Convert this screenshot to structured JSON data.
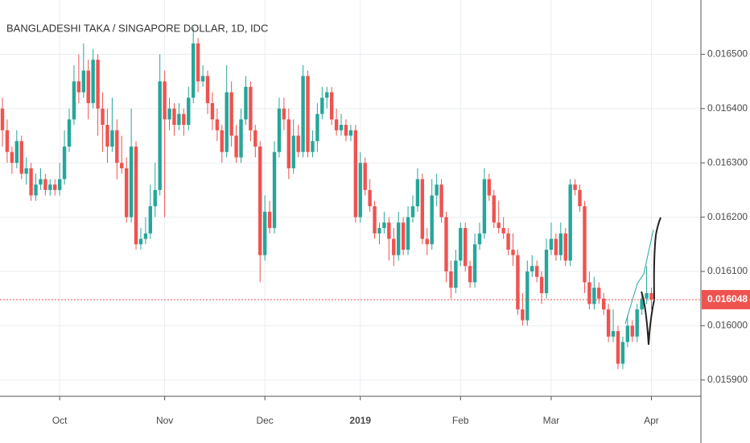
{
  "chart_data": {
    "type": "candlestick",
    "title": "BANGLADESHI TAKA / SINGAPORE DOLLAR, 1D, IDC",
    "up_color": "#26a69a",
    "down_color": "#ef5350",
    "ylim": [
      0.01587,
      0.0166
    ],
    "yticks": [
      {
        "value": 0.0159,
        "label": "0.015900"
      },
      {
        "value": 0.016,
        "label": "0.016000"
      },
      {
        "value": 0.0161,
        "label": "0.016100"
      },
      {
        "value": 0.0162,
        "label": "0.016200"
      },
      {
        "value": 0.0163,
        "label": "0.016300"
      },
      {
        "value": 0.0164,
        "label": "0.016400"
      },
      {
        "value": 0.0165,
        "label": "0.016500"
      }
    ],
    "grid": true,
    "last_price": {
      "value": 0.016048,
      "label": "0.016048"
    },
    "categories": [
      null,
      null,
      null,
      null,
      null,
      null,
      null,
      null,
      null,
      null,
      null,
      null,
      "Oct",
      null,
      null,
      null,
      null,
      null,
      null,
      null,
      null,
      null,
      null,
      null,
      null,
      null,
      null,
      null,
      null,
      null,
      null,
      null,
      null,
      null,
      "Nov",
      null,
      null,
      null,
      null,
      null,
      null,
      null,
      null,
      null,
      null,
      null,
      null,
      null,
      null,
      null,
      null,
      null,
      null,
      null,
      null,
      "Dec",
      null,
      null,
      null,
      null,
      null,
      null,
      null,
      null,
      null,
      null,
      null,
      null,
      null,
      null,
      null,
      null,
      null,
      null,
      null,
      "2019",
      null,
      null,
      null,
      null,
      null,
      null,
      null,
      null,
      null,
      null,
      null,
      null,
      null,
      null,
      null,
      null,
      null,
      null,
      null,
      null,
      "Feb",
      null,
      null,
      null,
      null,
      null,
      null,
      null,
      null,
      null,
      null,
      null,
      null,
      null,
      null,
      null,
      null,
      null,
      null,
      "Mar",
      null,
      null,
      null,
      null,
      null,
      null,
      null,
      null,
      null,
      null,
      null,
      null,
      null,
      null,
      null,
      null,
      null,
      null,
      null,
      null,
      "Apr"
    ],
    "values": [
      [
        0.0164,
        0.01642,
        0.01633,
        0.01636
      ],
      [
        0.01636,
        0.01638,
        0.0163,
        0.01632
      ],
      [
        0.01632,
        0.01633,
        0.01628,
        0.0163
      ],
      [
        0.0163,
        0.01636,
        0.01629,
        0.01634
      ],
      [
        0.01634,
        0.01635,
        0.01627,
        0.01628
      ],
      [
        0.01628,
        0.01631,
        0.01626,
        0.01629
      ],
      [
        0.01629,
        0.0163,
        0.01623,
        0.01624
      ],
      [
        0.01624,
        0.01628,
        0.01623,
        0.01626
      ],
      [
        0.01626,
        0.01629,
        0.01625,
        0.01627
      ],
      [
        0.01627,
        0.01628,
        0.01624,
        0.01625
      ],
      [
        0.01625,
        0.01627,
        0.01624,
        0.01626
      ],
      [
        0.01626,
        0.01627,
        0.01624,
        0.01625
      ],
      [
        0.01625,
        0.0163,
        0.01624,
        0.01627
      ],
      [
        0.01627,
        0.01636,
        0.01626,
        0.01633
      ],
      [
        0.01633,
        0.0164,
        0.01632,
        0.01638
      ],
      [
        0.01638,
        0.01648,
        0.01637,
        0.01645
      ],
      [
        0.01645,
        0.0165,
        0.01641,
        0.01643
      ],
      [
        0.01643,
        0.01652,
        0.01642,
        0.01647
      ],
      [
        0.01647,
        0.01649,
        0.01638,
        0.01641
      ],
      [
        0.01641,
        0.01651,
        0.0164,
        0.01649
      ],
      [
        0.01649,
        0.0165,
        0.01635,
        0.0164
      ],
      [
        0.0164,
        0.01643,
        0.01632,
        0.01637
      ],
      [
        0.01637,
        0.0164,
        0.0163,
        0.01633
      ],
      [
        0.01633,
        0.01642,
        0.01632,
        0.01636
      ],
      [
        0.01636,
        0.01638,
        0.01627,
        0.0163
      ],
      [
        0.0163,
        0.01635,
        0.01628,
        0.01629
      ],
      [
        0.01629,
        0.01631,
        0.01619,
        0.0162
      ],
      [
        0.0162,
        0.0164,
        0.01619,
        0.01633
      ],
      [
        0.01633,
        0.01634,
        0.01614,
        0.01615
      ],
      [
        0.01615,
        0.01618,
        0.01614,
        0.01616
      ],
      [
        0.01616,
        0.0162,
        0.01615,
        0.01617
      ],
      [
        0.01617,
        0.01626,
        0.01616,
        0.01622
      ],
      [
        0.01622,
        0.0163,
        0.0162,
        0.01625
      ],
      [
        0.01625,
        0.0165,
        0.01624,
        0.01645
      ],
      [
        0.01645,
        0.01647,
        0.0162,
        0.01638
      ],
      [
        0.01638,
        0.01642,
        0.01636,
        0.0164
      ],
      [
        0.0164,
        0.01641,
        0.01635,
        0.01637
      ],
      [
        0.01637,
        0.01641,
        0.01636,
        0.01639
      ],
      [
        0.01639,
        0.0164,
        0.01635,
        0.01637
      ],
      [
        0.01637,
        0.01644,
        0.01636,
        0.01642
      ],
      [
        0.01642,
        0.01655,
        0.01641,
        0.01652
      ],
      [
        0.01652,
        0.01653,
        0.01643,
        0.01645
      ],
      [
        0.01645,
        0.01648,
        0.01644,
        0.01646
      ],
      [
        0.01646,
        0.01647,
        0.01639,
        0.01641
      ],
      [
        0.01641,
        0.01643,
        0.01636,
        0.01638
      ],
      [
        0.01638,
        0.0164,
        0.01634,
        0.01636
      ],
      [
        0.01636,
        0.01637,
        0.0163,
        0.01632
      ],
      [
        0.01632,
        0.01648,
        0.01631,
        0.01643
      ],
      [
        0.01643,
        0.01645,
        0.01633,
        0.01635
      ],
      [
        0.01635,
        0.01637,
        0.0163,
        0.01631
      ],
      [
        0.01631,
        0.0164,
        0.0163,
        0.01638
      ],
      [
        0.01638,
        0.01646,
        0.01637,
        0.01644
      ],
      [
        0.01644,
        0.01645,
        0.01634,
        0.01636
      ],
      [
        0.01636,
        0.01637,
        0.01631,
        0.01633
      ],
      [
        0.01633,
        0.01634,
        0.01608,
        0.01613
      ],
      [
        0.01613,
        0.01624,
        0.01612,
        0.01621
      ],
      [
        0.01621,
        0.01623,
        0.01617,
        0.01618
      ],
      [
        0.01618,
        0.01634,
        0.01617,
        0.01632
      ],
      [
        0.01632,
        0.01642,
        0.01631,
        0.0164
      ],
      [
        0.0164,
        0.01642,
        0.01636,
        0.01638
      ],
      [
        0.01638,
        0.0164,
        0.01627,
        0.01629
      ],
      [
        0.01629,
        0.01638,
        0.01628,
        0.01635
      ],
      [
        0.01635,
        0.01637,
        0.01631,
        0.01632
      ],
      [
        0.01632,
        0.01648,
        0.01631,
        0.01646
      ],
      [
        0.01646,
        0.01647,
        0.01631,
        0.01632
      ],
      [
        0.01632,
        0.01636,
        0.01631,
        0.01634
      ],
      [
        0.01634,
        0.01641,
        0.01632,
        0.01639
      ],
      [
        0.01639,
        0.01644,
        0.01638,
        0.01642
      ],
      [
        0.01642,
        0.01644,
        0.0164,
        0.01643
      ],
      [
        0.01643,
        0.01644,
        0.01637,
        0.01638
      ],
      [
        0.01638,
        0.0164,
        0.01635,
        0.01636
      ],
      [
        0.01636,
        0.01639,
        0.01635,
        0.01637
      ],
      [
        0.01637,
        0.01638,
        0.01634,
        0.01635
      ],
      [
        0.01635,
        0.01637,
        0.01634,
        0.01636
      ],
      [
        0.01636,
        0.01637,
        0.01619,
        0.0162
      ],
      [
        0.0162,
        0.01632,
        0.01619,
        0.0163
      ],
      [
        0.0163,
        0.01631,
        0.01624,
        0.01625
      ],
      [
        0.01625,
        0.01627,
        0.01621,
        0.01622
      ],
      [
        0.01622,
        0.01623,
        0.01616,
        0.01617
      ],
      [
        0.01617,
        0.01619,
        0.01615,
        0.01618
      ],
      [
        0.01618,
        0.01621,
        0.01617,
        0.01619
      ],
      [
        0.01619,
        0.0162,
        0.01612,
        0.01616
      ],
      [
        0.01616,
        0.01618,
        0.01611,
        0.01613
      ],
      [
        0.01613,
        0.01621,
        0.01612,
        0.01619
      ],
      [
        0.01619,
        0.0162,
        0.01613,
        0.01614
      ],
      [
        0.01614,
        0.01622,
        0.01613,
        0.0162
      ],
      [
        0.0162,
        0.01624,
        0.01619,
        0.01622
      ],
      [
        0.01622,
        0.01629,
        0.01621,
        0.01627
      ],
      [
        0.01627,
        0.01628,
        0.01615,
        0.01616
      ],
      [
        0.01616,
        0.01618,
        0.01613,
        0.01615
      ],
      [
        0.01615,
        0.01627,
        0.01614,
        0.01624
      ],
      [
        0.01624,
        0.01628,
        0.01622,
        0.01626
      ],
      [
        0.01626,
        0.01627,
        0.01619,
        0.0162
      ],
      [
        0.0162,
        0.01621,
        0.01608,
        0.0161
      ],
      [
        0.0161,
        0.01612,
        0.01605,
        0.01607
      ],
      [
        0.01607,
        0.01614,
        0.01606,
        0.01612
      ],
      [
        0.01612,
        0.01619,
        0.01611,
        0.01618
      ],
      [
        0.01618,
        0.01619,
        0.0161,
        0.01611
      ],
      [
        0.01611,
        0.01612,
        0.01607,
        0.01608
      ],
      [
        0.01608,
        0.01617,
        0.01607,
        0.01615
      ],
      [
        0.01615,
        0.01619,
        0.01614,
        0.01617
      ],
      [
        0.01617,
        0.01629,
        0.01616,
        0.01627
      ],
      [
        0.01627,
        0.01628,
        0.01623,
        0.01624
      ],
      [
        0.01624,
        0.01625,
        0.01618,
        0.01619
      ],
      [
        0.01619,
        0.01623,
        0.01617,
        0.01618
      ],
      [
        0.01618,
        0.0162,
        0.01616,
        0.01617
      ],
      [
        0.01617,
        0.01618,
        0.01613,
        0.01614
      ],
      [
        0.01614,
        0.01617,
        0.01611,
        0.01613
      ],
      [
        0.01613,
        0.01614,
        0.01602,
        0.01603
      ],
      [
        0.01603,
        0.01606,
        0.016,
        0.01601
      ],
      [
        0.01601,
        0.01612,
        0.016,
        0.0161
      ],
      [
        0.0161,
        0.01613,
        0.01609,
        0.01611
      ],
      [
        0.01611,
        0.01612,
        0.01608,
        0.01609
      ],
      [
        0.01609,
        0.0161,
        0.01604,
        0.01606
      ],
      [
        0.01606,
        0.01616,
        0.01605,
        0.01614
      ],
      [
        0.01614,
        0.01619,
        0.01613,
        0.01616
      ],
      [
        0.01616,
        0.01617,
        0.01612,
        0.01613
      ],
      [
        0.01613,
        0.01619,
        0.01612,
        0.01617
      ],
      [
        0.01617,
        0.01618,
        0.01611,
        0.01612
      ],
      [
        0.01612,
        0.01627,
        0.01611,
        0.01626
      ],
      [
        0.01626,
        0.01627,
        0.01624,
        0.01625
      ],
      [
        0.01625,
        0.01626,
        0.01621,
        0.01622
      ],
      [
        0.01622,
        0.01623,
        0.01606,
        0.01608
      ],
      [
        0.01608,
        0.0161,
        0.01603,
        0.01604
      ],
      [
        0.01604,
        0.01609,
        0.01603,
        0.01607
      ],
      [
        0.01607,
        0.01608,
        0.01604,
        0.01605
      ],
      [
        0.01605,
        0.01606,
        0.01602,
        0.01603
      ],
      [
        0.01603,
        0.01604,
        0.01597,
        0.01598
      ],
      [
        0.01598,
        0.01603,
        0.01597,
        0.01599
      ],
      [
        0.01599,
        0.016,
        0.01592,
        0.01593
      ],
      [
        0.01593,
        0.01598,
        0.01592,
        0.01597
      ],
      [
        0.01597,
        0.01602,
        0.01596,
        0.016
      ],
      [
        0.016,
        0.01601,
        0.01597,
        0.01598
      ],
      [
        0.01598,
        0.01604,
        0.01597,
        0.01603
      ],
      [
        0.01603,
        0.01606,
        0.01602,
        0.01605
      ],
      [
        0.01605,
        0.01611,
        0.01604,
        0.01606
      ],
      [
        0.01606,
        0.01607,
        0.01603,
        0.016048
      ]
    ]
  }
}
